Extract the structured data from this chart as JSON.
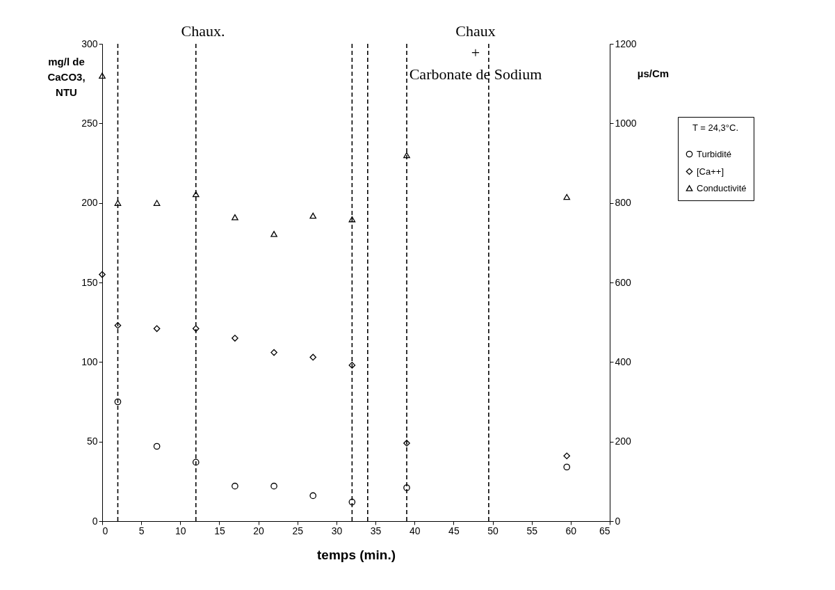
{
  "chart_data": {
    "type": "scatter",
    "xlabel": "temps (min.)",
    "ylabel": "mg/l de CaCO3, NTU",
    "y2label": "µs/Cm",
    "legend_title": "T = 24,3°C.",
    "legend": "right",
    "grid": false,
    "x": [
      0,
      2,
      7,
      12,
      17,
      22,
      27,
      32,
      39,
      59.5
    ],
    "xlim": [
      0,
      65
    ],
    "xticks": [
      0,
      5,
      10,
      15,
      20,
      25,
      30,
      35,
      40,
      45,
      50,
      55,
      60,
      65
    ],
    "ylim": [
      0,
      300
    ],
    "yticks": [
      0,
      50,
      100,
      150,
      200,
      250,
      300
    ],
    "y2lim": [
      0,
      1200
    ],
    "y2ticks": [
      0,
      200,
      400,
      600,
      800,
      1000,
      1200
    ],
    "series": [
      {
        "name": "Turbidité",
        "color": "#000000",
        "marker": "circle",
        "values": [
          null,
          75,
          47,
          37,
          22,
          22,
          16,
          12,
          21,
          34
        ]
      },
      {
        "name": "[Ca++]",
        "color": "#000000",
        "marker": "diamond",
        "values": [
          155,
          123,
          121,
          121,
          115,
          106,
          103,
          98,
          49,
          41
        ]
      },
      {
        "name": "Conductivité",
        "color": "#000000",
        "marker": "triangle",
        "axis": "y2",
        "values": [
          1120,
          800,
          800,
          822,
          764,
          722,
          768,
          759,
          920,
          815
        ]
      }
    ],
    "ref_lines": [
      {
        "axis": "x",
        "value": 2,
        "line_style": "dashed",
        "color": "#000000"
      },
      {
        "axis": "x",
        "value": 12,
        "line_style": "dashed",
        "color": "#000000"
      },
      {
        "axis": "x",
        "value": 32,
        "line_style": "dashed",
        "color": "#000000"
      },
      {
        "axis": "x",
        "value": 34,
        "line_style": "dashed",
        "color": "#000000"
      },
      {
        "axis": "x",
        "value": 39,
        "line_style": "dashed",
        "color": "#000000"
      },
      {
        "axis": "x",
        "value": 49.5,
        "line_style": "dashed",
        "color": "#000000"
      }
    ],
    "annotations": [
      "Chaux.",
      "Chaux\n+\nCarbonate de Sodium"
    ]
  }
}
